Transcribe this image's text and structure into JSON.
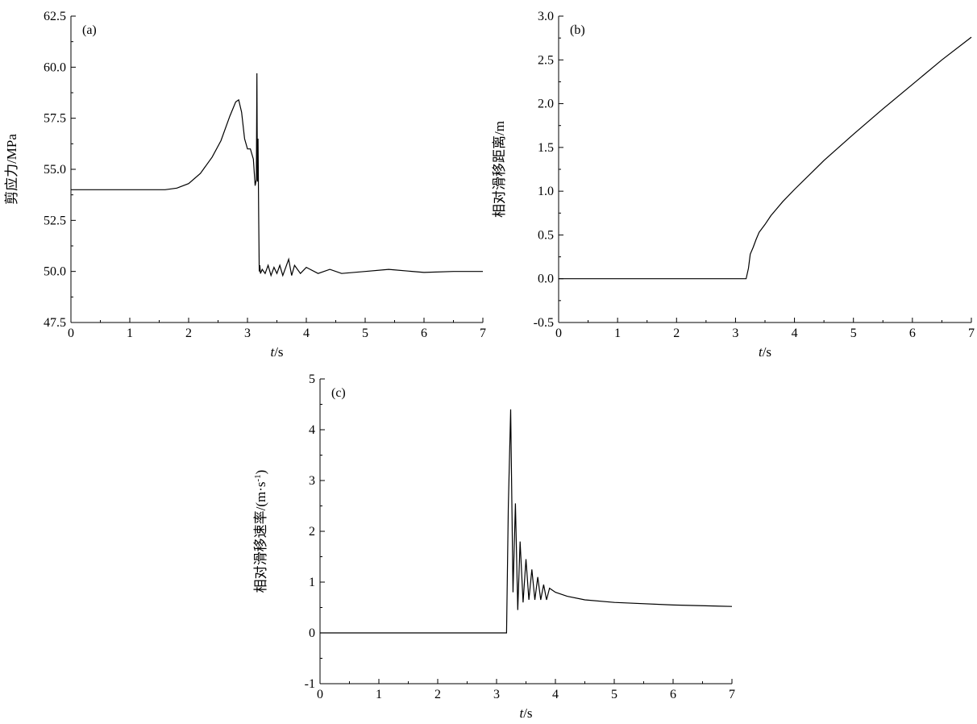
{
  "chart_data": [
    {
      "panel": "(a)",
      "type": "line",
      "xlabel_italic": "t",
      "xlabel_unit": "/s",
      "ylabel": "剪应力/MPa",
      "xlim": [
        0,
        7
      ],
      "ylim": [
        47.5,
        62.5
      ],
      "xticks": [
        "0",
        "1",
        "2",
        "3",
        "4",
        "5",
        "6",
        "7"
      ],
      "yticks": [
        "47.5",
        "50.0",
        "52.5",
        "55.0",
        "57.5",
        "60.0",
        "62.5"
      ],
      "grid": false,
      "series": [
        {
          "x": [
            0,
            1.6,
            1.8,
            2.0,
            2.2,
            2.4,
            2.55,
            2.7,
            2.8,
            2.85,
            2.9,
            2.95,
            3.0,
            3.05,
            3.1,
            3.13,
            3.15,
            3.16,
            3.165,
            3.17,
            3.18,
            3.19,
            3.2,
            3.21,
            3.22,
            3.25,
            3.3,
            3.35,
            3.4,
            3.45,
            3.5,
            3.55,
            3.6,
            3.65,
            3.7,
            3.75,
            3.8,
            3.9,
            4.0,
            4.2,
            4.4,
            4.6,
            5.0,
            5.4,
            6.0,
            6.5,
            7.0
          ],
          "y": [
            54.0,
            54.0,
            54.08,
            54.3,
            54.8,
            55.6,
            56.4,
            57.6,
            58.3,
            58.4,
            57.8,
            56.5,
            56.0,
            56.0,
            55.5,
            54.2,
            54.5,
            59.7,
            57.0,
            54.4,
            56.5,
            52.7,
            50.0,
            50.3,
            49.9,
            50.1,
            49.9,
            50.3,
            49.8,
            50.2,
            49.9,
            50.3,
            49.8,
            50.2,
            50.6,
            49.8,
            50.3,
            49.9,
            50.2,
            49.9,
            50.1,
            49.9,
            50.0,
            50.1,
            49.95,
            50.0,
            50.0
          ]
        }
      ]
    },
    {
      "panel": "(b)",
      "type": "line",
      "xlabel_italic": "t",
      "xlabel_unit": "/s",
      "ylabel": "相对滑移距离/m",
      "xlim": [
        0,
        7
      ],
      "ylim": [
        -0.5,
        3.0
      ],
      "xticks": [
        "0",
        "1",
        "2",
        "3",
        "4",
        "5",
        "6",
        "7"
      ],
      "yticks": [
        "-0.5",
        "0.0",
        "0.5",
        "1.0",
        "1.5",
        "2.0",
        "2.5",
        "3.0"
      ],
      "grid": false,
      "series": [
        {
          "x": [
            0,
            3.18,
            3.22,
            3.25,
            3.3,
            3.35,
            3.4,
            3.5,
            3.6,
            3.7,
            3.8,
            4.0,
            4.5,
            5.0,
            5.5,
            6.0,
            6.5,
            7.0
          ],
          "y": [
            0.0,
            0.0,
            0.12,
            0.28,
            0.36,
            0.45,
            0.53,
            0.62,
            0.72,
            0.8,
            0.88,
            1.02,
            1.35,
            1.65,
            1.94,
            2.22,
            2.5,
            2.76
          ]
        }
      ]
    },
    {
      "panel": "(c)",
      "type": "line",
      "xlabel_italic": "t",
      "xlabel_unit": "/s",
      "ylabel": "相对滑移速率/(m·s",
      "ylabel_sup": "-1",
      "ylabel_end": ")",
      "xlim": [
        0,
        7
      ],
      "ylim": [
        -1,
        5
      ],
      "xticks": [
        "0",
        "1",
        "2",
        "3",
        "4",
        "5",
        "6",
        "7"
      ],
      "yticks": [
        "-1",
        "0",
        "1",
        "2",
        "3",
        "4",
        "5"
      ],
      "grid": false,
      "series": [
        {
          "x": [
            0,
            3.17,
            3.2,
            3.24,
            3.28,
            3.32,
            3.36,
            3.4,
            3.45,
            3.5,
            3.55,
            3.6,
            3.65,
            3.7,
            3.75,
            3.8,
            3.85,
            3.9,
            4.0,
            4.2,
            4.5,
            5.0,
            6.0,
            7.0
          ],
          "y": [
            0.0,
            0.0,
            2.5,
            4.4,
            0.8,
            2.55,
            0.45,
            1.8,
            0.6,
            1.45,
            0.65,
            1.25,
            0.65,
            1.1,
            0.65,
            0.95,
            0.65,
            0.88,
            0.8,
            0.72,
            0.65,
            0.6,
            0.55,
            0.52
          ]
        }
      ]
    }
  ]
}
